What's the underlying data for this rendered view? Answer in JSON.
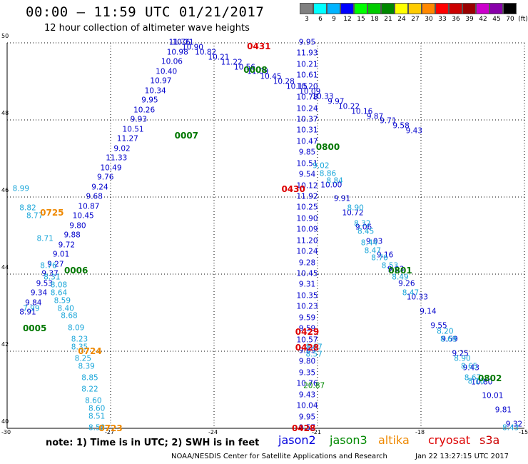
{
  "header": {
    "title": "00:00 – 11:59 UTC 01/21/2017",
    "subtitle": "12 hour collection of altimeter wave heights"
  },
  "scale": {
    "unit": "(ft)",
    "colors": [
      "#808080",
      "#00ffff",
      "#00b4ff",
      "#0000ff",
      "#00ff00",
      "#00cc00",
      "#008800",
      "#ffff00",
      "#ffcc00",
      "#ff8800",
      "#ff0000",
      "#cc0000",
      "#990000",
      "#cc00cc",
      "#8800aa",
      "#000000"
    ],
    "labels": [
      "3",
      "6",
      "9",
      "12",
      "15",
      "18",
      "21",
      "24",
      "27",
      "30",
      "33",
      "36",
      "39",
      "42",
      "45",
      "70"
    ]
  },
  "axes": {
    "lat_labels": [
      "50",
      "48",
      "46",
      "44",
      "42",
      "40"
    ],
    "lon_labels": [
      "-30",
      "-27",
      "-24",
      "-21",
      "-18",
      "-15"
    ]
  },
  "tracks": [
    {
      "name": "track-a",
      "color": "#0000cc",
      "from": [
        -29.4,
        43.0
      ],
      "to": [
        -24.9,
        50.0
      ],
      "labels": [
        "8.91",
        "9.84",
        "9.34",
        "9.53",
        "9.37",
        "9.27",
        "9.01",
        "9.72",
        "9.88",
        "9.80",
        "10.45",
        "10.87",
        "9.68",
        "9.24",
        "9.76",
        "10.49",
        "11.33",
        "9.02",
        "11.27",
        "10.51",
        "9.93",
        "10.26",
        "9.95",
        "10.34",
        "10.97",
        "10.40",
        "10.06",
        "10.98",
        "10.21"
      ]
    },
    {
      "name": "track-b",
      "color": "#0000cc",
      "from": [
        -25.0,
        50.0
      ],
      "to": [
        -18.2,
        47.7
      ],
      "labels": [
        "11.76",
        "10.90",
        "10.82",
        "10.21",
        "11.22",
        "10.56",
        "11.09",
        "10.45",
        "10.28",
        "10.15",
        "10.09",
        "10.33",
        "9.97",
        "10.22",
        "10.16",
        "9.87",
        "9.71",
        "9.58",
        "9.43"
      ]
    },
    {
      "name": "track-c",
      "color": "#0000cc",
      "from": [
        -21.3,
        50.0
      ],
      "to": [
        -21.3,
        40.0
      ],
      "labels": [
        "9.95",
        "11.93",
        "10.21",
        "10.61",
        "10.20",
        "10.78",
        "10.24",
        "10.37",
        "10.31",
        "10.47",
        "9.85",
        "10.51",
        "9.54",
        "10.12",
        "11.92",
        "10.25",
        "10.90",
        "10.09",
        "11.20",
        "10.24",
        "9.28",
        "10.45",
        "9.31",
        "10.35",
        "10.23",
        "9.59",
        "9.59",
        "10.57",
        "9.69",
        "9.80",
        "9.35",
        "10.76",
        "9.43",
        "10.04",
        "9.95",
        "9.57"
      ]
    },
    {
      "name": "track-d",
      "color": "#0000cc",
      "from": [
        -20.6,
        46.3
      ],
      "to": [
        -15.3,
        40.1
      ],
      "labels": [
        "10.00",
        "9.91",
        "10.72",
        "9.06",
        "9.03",
        "9.16",
        "9.03",
        "9.26",
        "10.33",
        "9.14",
        "9.55",
        "9.59",
        "9.25",
        "9.43",
        "10.80",
        "10.01",
        "9.81",
        "9.32"
      ]
    }
  ],
  "cyan_labels": [
    {
      "t": "8.99",
      "lon": -29.6,
      "lat": 46.2
    },
    {
      "t": "8.82",
      "lon": -29.4,
      "lat": 45.7
    },
    {
      "t": "8.77",
      "lon": -29.2,
      "lat": 45.5
    },
    {
      "t": "8.71",
      "lon": -28.9,
      "lat": 44.9
    },
    {
      "t": "8.76",
      "lon": -28.8,
      "lat": 44.2
    },
    {
      "t": "8.31",
      "lon": -28.7,
      "lat": 43.9
    },
    {
      "t": "8.08",
      "lon": -28.5,
      "lat": 43.7
    },
    {
      "t": "8.64",
      "lon": -28.5,
      "lat": 43.5
    },
    {
      "t": "8.59",
      "lon": -28.4,
      "lat": 43.3
    },
    {
      "t": "8.40",
      "lon": -28.3,
      "lat": 43.1
    },
    {
      "t": "8.68",
      "lon": -28.2,
      "lat": 42.9
    },
    {
      "t": "7.99",
      "lon": -29.3,
      "lat": 43.1
    },
    {
      "t": "8.09",
      "lon": -28.0,
      "lat": 42.6
    },
    {
      "t": "8.23",
      "lon": -27.9,
      "lat": 42.3
    },
    {
      "t": "8.35",
      "lon": -27.9,
      "lat": 42.1
    },
    {
      "t": "8.25",
      "lon": -27.8,
      "lat": 41.8
    },
    {
      "t": "8.39",
      "lon": -27.7,
      "lat": 41.6
    },
    {
      "t": "8.85",
      "lon": -27.6,
      "lat": 41.3
    },
    {
      "t": "8.22",
      "lon": -27.6,
      "lat": 41.0
    },
    {
      "t": "8.60",
      "lon": -27.5,
      "lat": 40.7
    },
    {
      "t": "8.60",
      "lon": -27.4,
      "lat": 40.5
    },
    {
      "t": "8.51",
      "lon": -27.4,
      "lat": 40.3
    },
    {
      "t": "8.58",
      "lon": -27.4,
      "lat": 40.0
    },
    {
      "t": "8.86",
      "lon": -20.7,
      "lat": 46.6
    },
    {
      "t": "8.84",
      "lon": -20.5,
      "lat": 46.4
    },
    {
      "t": "8.90",
      "lon": -19.9,
      "lat": 45.7
    },
    {
      "t": "8.32",
      "lon": -19.7,
      "lat": 45.3
    },
    {
      "t": "8.45",
      "lon": -19.6,
      "lat": 45.1
    },
    {
      "t": "8.44",
      "lon": -19.5,
      "lat": 44.8
    },
    {
      "t": "8.47",
      "lon": -19.4,
      "lat": 44.6
    },
    {
      "t": "8.76",
      "lon": -19.2,
      "lat": 44.4
    },
    {
      "t": "8.53",
      "lon": -18.9,
      "lat": 44.2
    },
    {
      "t": "8.49",
      "lon": -18.6,
      "lat": 43.9
    },
    {
      "t": "8.47",
      "lon": -18.3,
      "lat": 43.5
    },
    {
      "t": "8.20",
      "lon": -17.3,
      "lat": 42.5
    },
    {
      "t": "8.69",
      "lon": -17.2,
      "lat": 42.3
    },
    {
      "t": "8.90",
      "lon": -16.8,
      "lat": 41.8
    },
    {
      "t": "8.65",
      "lon": -16.6,
      "lat": 41.6
    },
    {
      "t": "8.67",
      "lon": -16.5,
      "lat": 41.3
    },
    {
      "t": "8.16",
      "lon": -16.4,
      "lat": 41.2
    },
    {
      "t": "8.43",
      "lon": -15.4,
      "lat": 40.0
    },
    {
      "t": "8.57",
      "lon": -21.1,
      "lat": 41.9
    },
    {
      "t": "8.67",
      "lon": -21.1,
      "lat": 42.1
    },
    {
      "t": "9.02",
      "lon": -20.9,
      "lat": 46.8
    }
  ],
  "green_values": [
    {
      "t": "20.87",
      "lon": -21.1,
      "lat": 41.1
    }
  ],
  "pass_labels": [
    {
      "t": "0005",
      "lon": -29.2,
      "lat": 42.6,
      "color": "#007700"
    },
    {
      "t": "0006",
      "lon": -28.0,
      "lat": 44.1,
      "color": "#007700"
    },
    {
      "t": "0007",
      "lon": -24.8,
      "lat": 47.6,
      "color": "#007700"
    },
    {
      "t": "0008",
      "lon": -22.8,
      "lat": 49.3,
      "color": "#007700"
    },
    {
      "t": "0800",
      "lon": -20.7,
      "lat": 47.3,
      "color": "#007700"
    },
    {
      "t": "0801",
      "lon": -18.6,
      "lat": 44.1,
      "color": "#007700"
    },
    {
      "t": "0802",
      "lon": -16.0,
      "lat": 41.3,
      "color": "#007700"
    },
    {
      "t": "0725",
      "lon": -28.7,
      "lat": 45.6,
      "color": "#ee8800"
    },
    {
      "t": "0724",
      "lon": -27.6,
      "lat": 42.0,
      "color": "#ee8800"
    },
    {
      "t": "0723",
      "lon": -27.0,
      "lat": 40.0,
      "color": "#ee8800"
    },
    {
      "t": "0431",
      "lon": -22.7,
      "lat": 49.9,
      "color": "#dd0000"
    },
    {
      "t": "0430",
      "lon": -21.7,
      "lat": 46.2,
      "color": "#dd0000"
    },
    {
      "t": "0429",
      "lon": -21.3,
      "lat": 42.5,
      "color": "#dd0000"
    },
    {
      "t": "0428",
      "lon": -21.3,
      "lat": 42.1,
      "color": "#dd0000"
    },
    {
      "t": "0428",
      "lon": -21.4,
      "lat": 40.0,
      "color": "#dd0000"
    }
  ],
  "footer": {
    "note": "note: 1) Time is in UTC; 2) SWH is in feet",
    "legend": [
      {
        "label": "jason2",
        "color": "#0000dd"
      },
      {
        "label": "jason3",
        "color": "#008800"
      },
      {
        "label": "altika",
        "color": "#ee8800"
      },
      {
        "label": "cryosat",
        "color": "#dd0000"
      },
      {
        "label": "s3a",
        "color": "#cc0000"
      }
    ],
    "credit": "NOAA/NESDIS Center for Satellite Applications and Research",
    "timestamp": "Jan 22 13:27:15 UTC 2017"
  }
}
